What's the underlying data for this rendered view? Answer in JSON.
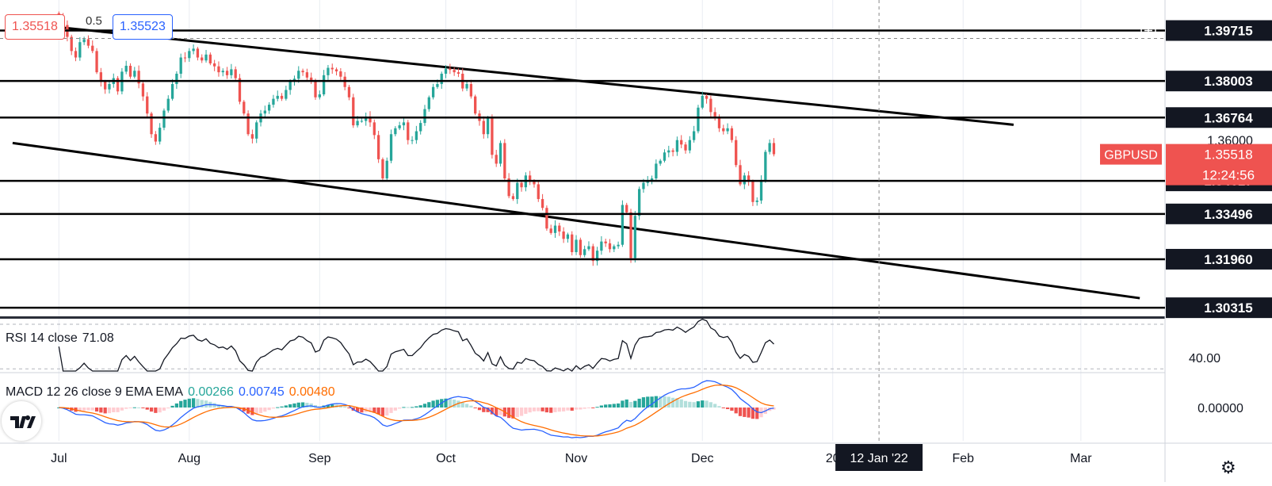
{
  "header": {
    "bid": "1.35518",
    "spread": "0.5",
    "ask": "1.35523"
  },
  "symbol": "GBPUSD",
  "countdown": "12:24:56",
  "crosshair_date": "12 Jan '22",
  "crosshair_price": "1.39715",
  "colors": {
    "up": "#26a69a",
    "down": "#ef5350",
    "price_tag": "#ef5350",
    "label_bg": "#131722",
    "rsi": "#131722",
    "macd": "#2962ff",
    "signal": "#ff6d00"
  },
  "icons": [
    "plus-circle-icon",
    "tradingview-logo-icon",
    "gear-icon"
  ],
  "chart_data": {
    "type": "candlestick",
    "price_range": [
      1.3005,
      1.4075
    ],
    "x_labels": [
      {
        "label": "Jul",
        "day": 0
      },
      {
        "label": "Aug",
        "day": 31
      },
      {
        "label": "Sep",
        "day": 62
      },
      {
        "label": "Oct",
        "day": 92
      },
      {
        "label": "Nov",
        "day": 123
      },
      {
        "label": "Dec",
        "day": 153
      },
      {
        "label": "20",
        "day": 184
      },
      {
        "label": "Feb",
        "day": 215
      },
      {
        "label": "Mar",
        "day": 243
      }
    ],
    "x_axis_domain": [
      -14,
      263
    ],
    "horizontal_levels": [
      "1.39715",
      "1.38003",
      "1.36764",
      "1.34617",
      "1.33496",
      "1.31960",
      "1.30315"
    ],
    "level_values": [
      1.39715,
      1.38003,
      1.36764,
      1.34617,
      1.33496,
      1.3196,
      1.30315
    ],
    "price_scale_labels": [
      "1.36000"
    ],
    "trend_lines": [
      {
        "from": [
          -1,
          1.3984
        ],
        "to": [
          116,
          1.3812
        ],
        "note": "upper channel"
      },
      {
        "from": [
          116,
          1.3812
        ],
        "to": [
          227,
          1.3652
        ]
      },
      {
        "from": [
          -11,
          1.359
        ],
        "to": [
          257,
          1.3064
        ],
        "note": "lower channel"
      }
    ],
    "current_price": 1.35518,
    "closes": [
      1.402,
      1.399,
      1.395,
      1.3902,
      1.388,
      1.3932,
      1.3942,
      1.392,
      1.3902,
      1.383,
      1.3798,
      1.3772,
      1.379,
      1.381,
      1.3765,
      1.3832,
      1.3852,
      1.3815,
      1.3835,
      1.3792,
      1.3748,
      1.369,
      1.362,
      1.3595,
      1.3642,
      1.37,
      1.374,
      1.379,
      1.3825,
      1.388,
      1.3878,
      1.3902,
      1.391,
      1.388,
      1.387,
      1.389,
      1.386,
      1.385,
      1.383,
      1.3835,
      1.382,
      1.384,
      1.381,
      1.373,
      1.369,
      1.362,
      1.3605,
      1.366,
      1.369,
      1.37,
      1.372,
      1.374,
      1.375,
      1.374,
      1.377,
      1.38,
      1.3808,
      1.3835,
      1.383,
      1.3812,
      1.38,
      1.3745,
      1.3755,
      1.382,
      1.3845,
      1.384,
      1.3833,
      1.3815,
      1.378,
      1.3745,
      1.365,
      1.3665,
      1.3665,
      1.368,
      1.366,
      1.3617,
      1.3535,
      1.347,
      1.353,
      1.362,
      1.364,
      1.365,
      1.366,
      1.36,
      1.36,
      1.363,
      1.3658,
      1.3705,
      1.3745,
      1.378,
      1.379,
      1.3825,
      1.3842,
      1.3838,
      1.383,
      1.3825,
      1.3775,
      1.379,
      1.3748,
      1.369,
      1.3665,
      1.362,
      1.3675,
      1.355,
      1.352,
      1.359,
      1.347,
      1.341,
      1.34,
      1.3455,
      1.344,
      1.348,
      1.346,
      1.345,
      1.34,
      1.337,
      1.33,
      1.3285,
      1.331,
      1.329,
      1.3265,
      1.328,
      1.322,
      1.3262,
      1.321,
      1.323,
      1.324,
      1.319,
      1.3225,
      1.3256,
      1.325,
      1.323,
      1.324,
      1.3245,
      1.338,
      1.3355,
      1.32,
      1.3343,
      1.3434,
      1.3455,
      1.346,
      1.347,
      1.352,
      1.353,
      1.3558,
      1.3565,
      1.356,
      1.36,
      1.3585,
      1.3565,
      1.36,
      1.363,
      1.371,
      1.375,
      1.374,
      1.3695,
      1.368,
      1.364,
      1.363,
      1.364,
      1.36,
      1.3515,
      1.345,
      1.348,
      1.346,
      1.339,
      1.3395,
      1.3465,
      1.356,
      1.359,
      1.3552
    ],
    "rsi": {
      "label": "RSI 14 close",
      "value": "71.08",
      "level_labels": [
        "40.00"
      ],
      "levels": [
        70,
        30
      ],
      "range": [
        28,
        75
      ]
    },
    "macd": {
      "label": "MACD 12 26 close 9 EMA EMA",
      "histogram": "0.00266",
      "macd": "0.00745",
      "signal": "0.00480",
      "axis_labels": [
        "0.00000"
      ]
    }
  }
}
